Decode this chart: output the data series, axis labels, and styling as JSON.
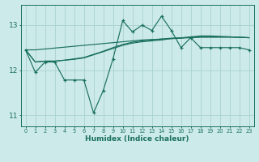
{
  "xlabel": "Humidex (Indice chaleur)",
  "bg_color": "#cdeaea",
  "grid_color": "#aed4d4",
  "line_color": "#1a7060",
  "xlim": [
    -0.5,
    23.5
  ],
  "ylim": [
    10.75,
    13.45
  ],
  "yticks": [
    11,
    12,
    13
  ],
  "xticks": [
    0,
    1,
    2,
    3,
    4,
    5,
    6,
    7,
    8,
    9,
    10,
    11,
    12,
    13,
    14,
    15,
    16,
    17,
    18,
    19,
    20,
    21,
    22,
    23
  ],
  "series1_y": [
    12.45,
    11.95,
    12.18,
    12.18,
    11.78,
    11.78,
    11.78,
    11.05,
    11.55,
    12.25,
    13.1,
    12.85,
    13.0,
    12.88,
    13.2,
    12.88,
    12.5,
    12.72,
    12.5,
    12.5,
    12.5,
    12.5,
    12.5,
    12.45
  ],
  "series2_y": [
    12.45,
    12.45,
    12.47,
    12.49,
    12.51,
    12.53,
    12.55,
    12.57,
    12.59,
    12.61,
    12.63,
    12.65,
    12.67,
    12.68,
    12.69,
    12.7,
    12.71,
    12.72,
    12.73,
    12.73,
    12.73,
    12.73,
    12.73,
    12.72
  ],
  "series3_y": [
    12.45,
    12.18,
    12.2,
    12.2,
    12.22,
    12.25,
    12.28,
    12.35,
    12.42,
    12.5,
    12.57,
    12.62,
    12.65,
    12.67,
    12.69,
    12.71,
    12.72,
    12.73,
    12.74,
    12.74,
    12.74,
    12.74,
    12.73,
    12.72
  ],
  "series4_y": [
    12.45,
    12.18,
    12.2,
    12.2,
    12.22,
    12.24,
    12.27,
    12.34,
    12.41,
    12.48,
    12.55,
    12.6,
    12.63,
    12.65,
    12.67,
    12.7,
    12.71,
    12.74,
    12.76,
    12.76,
    12.75,
    12.74,
    12.73,
    12.72
  ]
}
